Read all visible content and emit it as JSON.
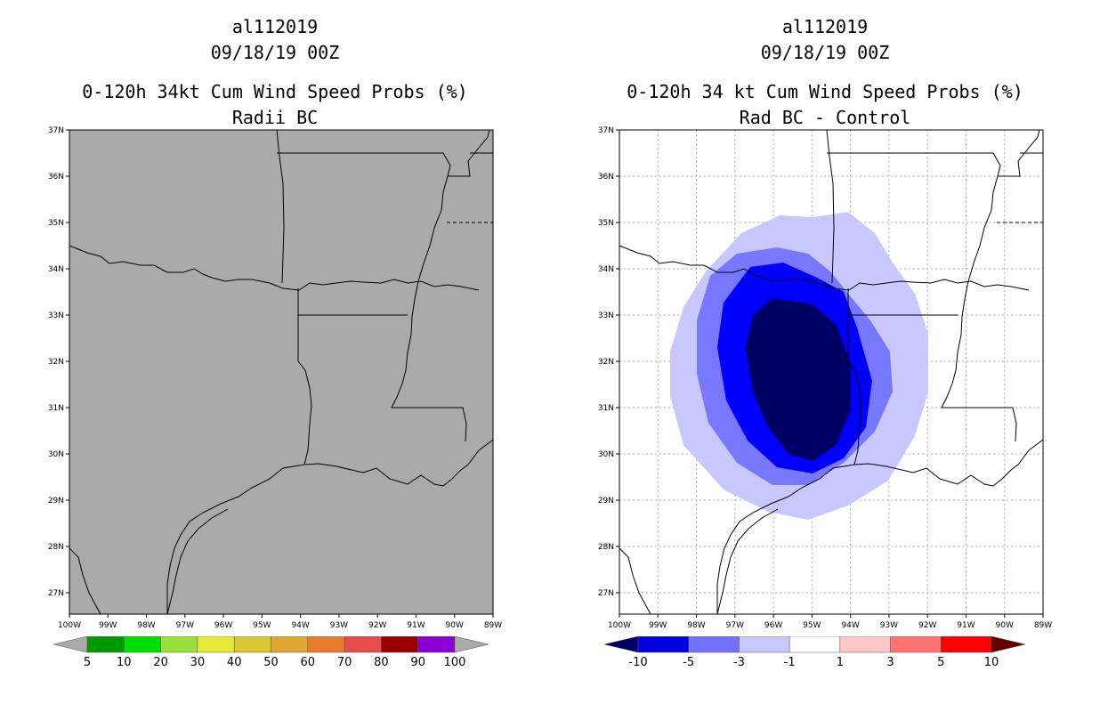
{
  "left": {
    "title_line1": "al112019",
    "title_line2": "09/18/19 00Z",
    "title_line3": "0-120h 34kt Cum Wind Speed Probs (%)",
    "title_line4": "Radii BC",
    "background_color": "#aaaaaa",
    "colorbar": {
      "left_arrow_color": "#aaaaaa",
      "right_arrow_color": "#aaaaaa",
      "colors": [
        "#009a00",
        "#00e000",
        "#9ae03c",
        "#e8e837",
        "#d7c834",
        "#e0a532",
        "#e87c2c",
        "#e84d4d",
        "#9a0000",
        "#8a00d7"
      ],
      "labels": [
        "5",
        "10",
        "20",
        "30",
        "40",
        "50",
        "60",
        "70",
        "80",
        "90",
        "100"
      ]
    }
  },
  "right": {
    "title_line1": "al112019",
    "title_line2": "09/18/19 00Z",
    "title_line3": "0-120h 34 kt Cum Wind Speed Probs (%)",
    "title_line4": "Rad BC - Control",
    "background_color": "#ffffff",
    "contour_colors": [
      "#c8c8ff",
      "#7878ff",
      "#0000ff",
      "#000064"
    ],
    "colorbar": {
      "left_arrow_color": "#000064",
      "right_arrow_color": "#640000",
      "colors": [
        "#0000e0",
        "#7272ff",
        "#c8c8ff",
        "#ffffff",
        "#ffc8c8",
        "#ff7272",
        "#ff0000"
      ],
      "labels": [
        "-10",
        "-5",
        "-3",
        "-1",
        "1",
        "3",
        "5",
        "10"
      ]
    }
  },
  "axes": {
    "lat_labels": [
      "37N",
      "36N",
      "35N",
      "34N",
      "33N",
      "32N",
      "31N",
      "30N",
      "29N",
      "28N",
      "27N"
    ],
    "lon_labels": [
      "100W",
      "99W",
      "98W",
      "97W",
      "96W",
      "95W",
      "94W",
      "93W",
      "92W",
      "91W",
      "90W",
      "89W"
    ]
  }
}
